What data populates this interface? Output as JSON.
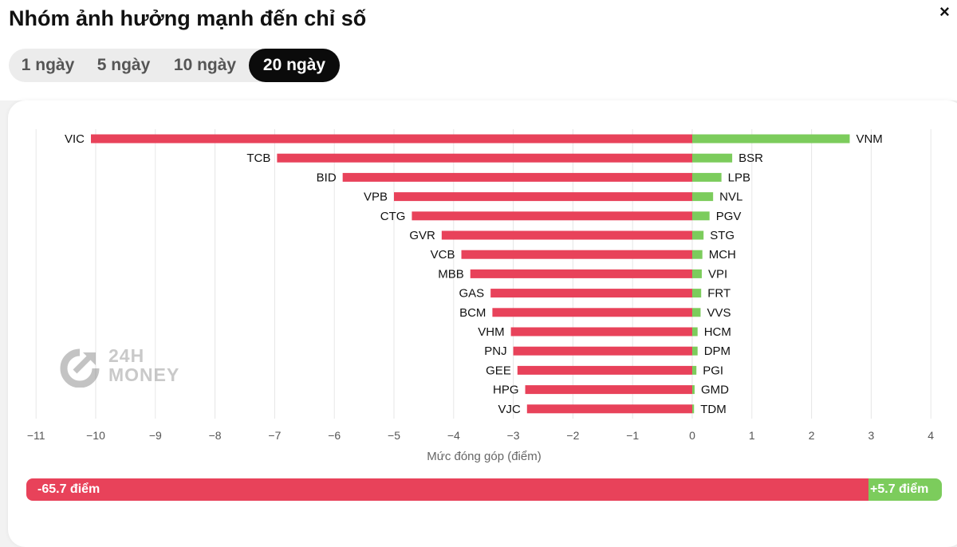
{
  "title": "Nhóm ảnh hưởng mạnh đến chỉ số",
  "close_icon": "×",
  "tabs": [
    {
      "label": "1 ngày",
      "active": false
    },
    {
      "label": "5 ngày",
      "active": false
    },
    {
      "label": "10 ngày",
      "active": false
    },
    {
      "label": "20 ngày",
      "active": true
    }
  ],
  "watermark": {
    "line1": "24H",
    "line2": "MONEY"
  },
  "colors": {
    "negative": "#e8425a",
    "positive": "#7ccc5c",
    "grid": "#e6e6e6"
  },
  "chart_data": {
    "type": "bar",
    "orientation": "horizontal",
    "xlabel": "Mức đóng góp (điểm)",
    "xlim": [
      -11,
      4
    ],
    "xticks": [
      -11,
      -10,
      -9,
      -8,
      -7,
      -6,
      -5,
      -4,
      -3,
      -2,
      -1,
      0,
      1,
      2,
      3,
      4
    ],
    "grid": true,
    "series": [
      {
        "categories": [
          "VIC",
          "TCB",
          "BID",
          "VPB",
          "CTG",
          "GVR",
          "VCB",
          "MBB",
          "GAS",
          "BCM",
          "VHM",
          "PNJ",
          "GEE",
          "HPG",
          "VJC"
        ],
        "values": [
          -10.08,
          -6.96,
          -5.86,
          -5.0,
          -4.7,
          -4.2,
          -3.87,
          -3.72,
          -3.38,
          -3.35,
          -3.04,
          -3.0,
          -2.93,
          -2.8,
          -2.77
        ]
      },
      {
        "categories": [
          "VNM",
          "BSR",
          "LPB",
          "NVL",
          "PGV",
          "STG",
          "MCH",
          "VPI",
          "FRT",
          "VVS",
          "HCM",
          "DPM",
          "PGI",
          "GMD",
          "TDM"
        ],
        "values": [
          2.64,
          0.67,
          0.49,
          0.35,
          0.29,
          0.19,
          0.17,
          0.16,
          0.15,
          0.14,
          0.09,
          0.09,
          0.07,
          0.04,
          0.03
        ]
      }
    ]
  },
  "totals": {
    "negative_label": "-65.7 điểm",
    "positive_label": "+5.7 điểm",
    "negative": -65.7,
    "positive": 5.7
  }
}
